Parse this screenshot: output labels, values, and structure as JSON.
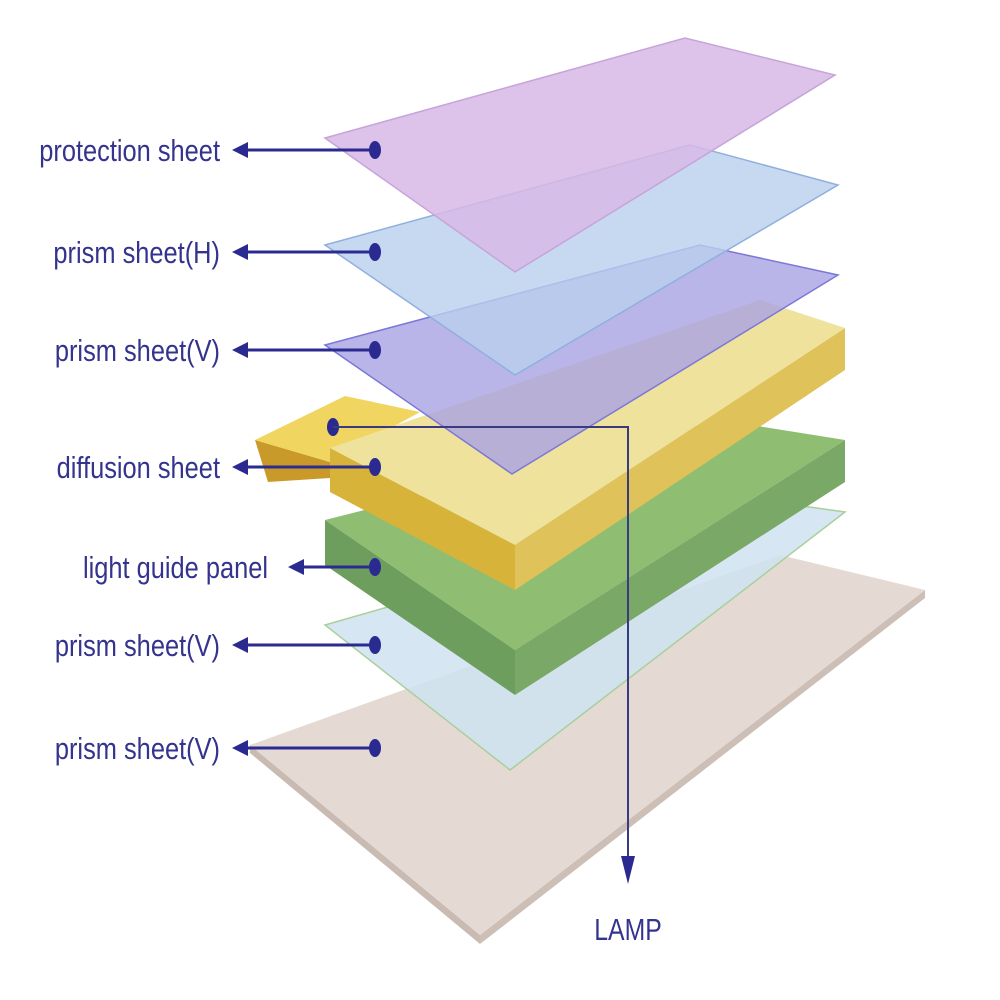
{
  "labels": [
    {
      "text": "protection sheet",
      "layer": "protection"
    },
    {
      "text": "prism sheet(H)",
      "layer": "prismH"
    },
    {
      "text": "prism sheet(V)",
      "layer": "prismV1"
    },
    {
      "text": "diffusion sheet",
      "layer": "diffusion"
    },
    {
      "text": "light guide panel",
      "layer": "lightguide"
    },
    {
      "text": "prism sheet(V)",
      "layer": "prismV2"
    },
    {
      "text": "prism sheet(V)",
      "layer": "base"
    }
  ],
  "lamp_label": "LAMP",
  "colors": {
    "label_text": "#34348e",
    "arrow": "#2a2a90",
    "protection": "#d7b9e6",
    "prismH": "#b9d0ee",
    "prismV": "#a9a3e3",
    "diffusion_top": "#efe29c",
    "diffusion_side": "#d8b33a",
    "lamp_tab": "#f0d660",
    "lightguide_top": "#8fbd72",
    "lightguide_side": "#6e9e5e",
    "lower_prism": "#cfe3f1",
    "base": "#e4dad3"
  }
}
